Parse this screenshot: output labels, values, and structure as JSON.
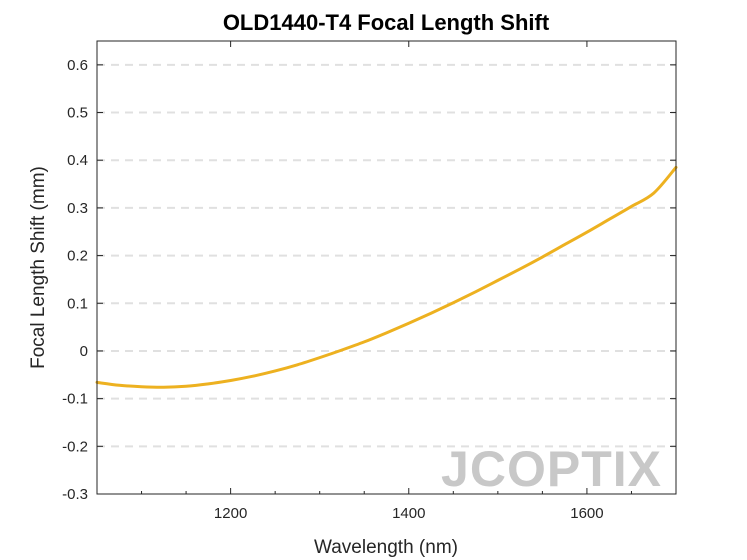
{
  "chart_data": {
    "type": "line",
    "title": "OLD1440-T4 Focal Length Shift",
    "xlabel": "Wavelength (nm)",
    "ylabel": "Focal Length Shift (mm)",
    "xlim": [
      1050,
      1700
    ],
    "ylim": [
      -0.3,
      0.65
    ],
    "xticks": [
      1200,
      1400,
      1600
    ],
    "yticks": [
      -0.3,
      -0.2,
      -0.1,
      0,
      0.1,
      0.2,
      0.3,
      0.4,
      0.5,
      0.6
    ],
    "ytick_labels": [
      "-0.3",
      "-0.2",
      "-0.1",
      "0",
      "0.1",
      "0.2",
      "0.3",
      "0.4",
      "0.5",
      "0.6"
    ],
    "grid": "horizontal-dashed",
    "series": [
      {
        "color": "#EDB120",
        "x": [
          1050,
          1075,
          1100,
          1125,
          1150,
          1175,
          1200,
          1225,
          1250,
          1275,
          1300,
          1325,
          1350,
          1375,
          1400,
          1425,
          1450,
          1475,
          1500,
          1525,
          1550,
          1575,
          1600,
          1625,
          1650,
          1675,
          1700
        ],
        "y": [
          -0.066,
          -0.072,
          -0.075,
          -0.076,
          -0.074,
          -0.069,
          -0.062,
          -0.053,
          -0.042,
          -0.029,
          -0.014,
          0.002,
          0.019,
          0.038,
          0.058,
          0.079,
          0.101,
          0.124,
          0.148,
          0.172,
          0.197,
          0.223,
          0.249,
          0.276,
          0.303,
          0.331,
          0.385
        ]
      }
    ]
  },
  "watermark": "JCOPTIX"
}
